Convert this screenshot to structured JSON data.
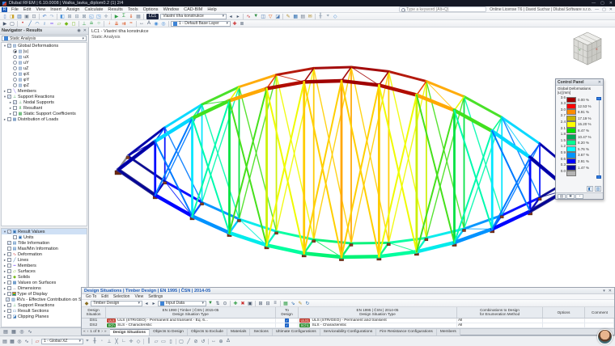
{
  "window": {
    "title": "Dlubal RFEM | 6.10.0008 | Walka_lavka_diplom0.2 (1) 2/4",
    "license": "Online License T6 | David Suchar | Dlubal Software s.r.o.",
    "search_placeholder": "Type a keyword (Alt+Q)",
    "controls": {
      "minimize": "—",
      "maximize": "▢",
      "close": "✕"
    }
  },
  "menubar": {
    "items": [
      "File",
      "Edit",
      "View",
      "Insert",
      "Assign",
      "Calculate",
      "Results",
      "Tools",
      "Options",
      "Window",
      "CAD-BIM",
      "Help"
    ]
  },
  "toolbar1": {
    "load_case_chip": "LC1",
    "load_case_name": "Vlastní tíha konstrukce",
    "left_icons": [
      {
        "n": "new-model-icon",
        "g": "▯",
        "c": "#5b87c5"
      },
      {
        "n": "open-model-icon",
        "g": "◨",
        "c": "#c9a227"
      },
      {
        "n": "save-icon",
        "g": "▥",
        "c": "#3e6fae"
      },
      {
        "n": "print-icon",
        "g": "▣",
        "c": "#6d7b8d"
      },
      {
        "n": "screenshot-icon",
        "g": "⊡",
        "c": "#6d7b8d"
      },
      {
        "sep": true
      },
      {
        "n": "undo-icon",
        "g": "↶",
        "c": "#3c78c8"
      },
      {
        "n": "redo-icon",
        "g": "↷",
        "c": "#9fb6d4"
      },
      {
        "sep": true
      },
      {
        "n": "view-isometric-icon",
        "g": "◧",
        "c": "#4a90d9"
      },
      {
        "n": "view-front-icon",
        "g": "⊞",
        "c": "#7a8ca0"
      },
      {
        "n": "view-top-icon",
        "g": "⊟",
        "c": "#7a8ca0"
      },
      {
        "n": "view-side-icon",
        "g": "⊠",
        "c": "#7a8ca0"
      },
      {
        "n": "zoom-window-icon",
        "g": "◱",
        "c": "#4a90d9"
      },
      {
        "n": "zoom-all-icon",
        "g": "◳",
        "c": "#4a90d9"
      },
      {
        "n": "pan-icon",
        "g": "✛",
        "c": "#7a8ca0"
      },
      {
        "sep": true
      },
      {
        "n": "calculate-icon",
        "g": "▶",
        "c": "#2f9e44"
      },
      {
        "n": "calculate-all-icon",
        "g": "Σ",
        "c": "#2f9e44"
      },
      {
        "n": "load-cases-icon",
        "g": "⇓",
        "c": "#d9480f"
      },
      {
        "n": "mesh-icon",
        "g": "▦",
        "c": "#7a8ca0"
      },
      {
        "sep": true
      }
    ],
    "right_icons": [
      {
        "n": "previous-load-case-icon",
        "g": "◂",
        "c": "#44546a"
      },
      {
        "n": "next-load-case-icon",
        "g": "▸",
        "c": "#44546a"
      },
      {
        "sep": true
      },
      {
        "n": "show-results-icon",
        "g": "∿",
        "c": "#c92a2a"
      },
      {
        "n": "result-values-icon",
        "g": "▼",
        "c": "#2b8a3e"
      },
      {
        "n": "control-panel-toggle-icon",
        "g": "◫",
        "c": "#4a78b0"
      },
      {
        "n": "result-filter-icon",
        "g": "▽",
        "c": "#e8590c"
      },
      {
        "n": "clipping-plane-icon",
        "g": "◪",
        "c": "#4a78b0"
      },
      {
        "sep": true
      },
      {
        "n": "edit-icon",
        "g": "✎",
        "c": "#b08d2f"
      },
      {
        "n": "tables-icon",
        "g": "▦",
        "c": "#2b6cb0"
      },
      {
        "n": "printout-report-icon",
        "g": "▤",
        "c": "#6d7b8d"
      },
      {
        "n": "add-comment-icon",
        "g": "✉",
        "c": "#b08d2f"
      },
      {
        "sep": true
      },
      {
        "n": "grid-icon",
        "g": "╫",
        "c": "#7a8ca0"
      },
      {
        "n": "object-snap-icon",
        "g": "⌖",
        "c": "#7a8ca0"
      },
      {
        "n": "work-plane-icon",
        "g": "◇",
        "c": "#4a90d9"
      }
    ]
  },
  "toolbar2": {
    "layer_combo": "1 - Default Base Layer",
    "icons": [
      {
        "n": "select-icon",
        "g": "▶",
        "c": "#44546a"
      },
      {
        "n": "select-special-icon",
        "g": "▢",
        "c": "#44546a"
      },
      {
        "sep": true
      },
      {
        "n": "node-icon",
        "g": "•",
        "c": "#c92a2a"
      },
      {
        "n": "line-icon",
        "g": "╱",
        "c": "#2b6cb0"
      },
      {
        "n": "arc-icon",
        "g": "◠",
        "c": "#2b6cb0"
      },
      {
        "n": "polyline-icon",
        "g": "≀",
        "c": "#2b6cb0"
      },
      {
        "n": "member-icon",
        "g": "━",
        "c": "#845ef7"
      },
      {
        "n": "surface-icon",
        "g": "▱",
        "c": "#74b816"
      },
      {
        "n": "solid-icon",
        "g": "◆",
        "c": "#74b816"
      },
      {
        "n": "opening-icon",
        "g": "◻",
        "c": "#74b816"
      },
      {
        "sep": true
      },
      {
        "n": "nodal-support-icon",
        "g": "⊥",
        "c": "#2f9e44"
      },
      {
        "n": "line-support-icon",
        "g": "≞",
        "c": "#2f9e44"
      },
      {
        "n": "member-hinge-icon",
        "g": "○",
        "c": "#2f9e44"
      },
      {
        "sep": true
      },
      {
        "n": "nodal-load-icon",
        "g": "↓",
        "c": "#d9480f"
      },
      {
        "n": "member-load-icon",
        "g": "⇊",
        "c": "#d9480f"
      },
      {
        "n": "surface-load-icon",
        "g": "⇉",
        "c": "#d9480f"
      },
      {
        "n": "imperfection-icon",
        "g": "≈",
        "c": "#d9480f"
      },
      {
        "sep": true
      },
      {
        "n": "dimension-icon",
        "g": "↔",
        "c": "#44546a"
      },
      {
        "n": "text-comment-icon",
        "g": "A",
        "c": "#44546a"
      },
      {
        "n": "visibility-icon",
        "g": "◉",
        "c": "#4a90d9"
      },
      {
        "n": "user-view-icon",
        "g": "◎",
        "c": "#4a90d9"
      },
      {
        "sep": true
      }
    ],
    "tail_icons": [
      {
        "n": "layer-settings-icon",
        "g": "✚",
        "c": "#c92a2a"
      },
      {
        "n": "layer-manager-icon",
        "g": "≣",
        "c": "#44546a"
      }
    ]
  },
  "viewport": {
    "label_line1": "LC1 - Vlastní tíha konstrukce",
    "label_line2": "Static Analysis"
  },
  "results_navigator": {
    "title": "Navigator - Results",
    "analysis_combo": "Static Analysis",
    "tree": [
      {
        "d": 0,
        "e": "v",
        "c": true,
        "ig": "▧",
        "icc": "#4a78b0",
        "label": "Global Deformations"
      },
      {
        "d": 1,
        "r": true,
        "ig": "▧",
        "icc": "#4a78b0",
        "label": "|u|"
      },
      {
        "d": 1,
        "r": false,
        "ig": "▧",
        "icc": "#4a78b0",
        "label": "uX"
      },
      {
        "d": 1,
        "r": false,
        "ig": "▧",
        "icc": "#4a78b0",
        "label": "uY"
      },
      {
        "d": 1,
        "r": false,
        "ig": "▧",
        "icc": "#4a78b0",
        "label": "uZ"
      },
      {
        "d": 1,
        "r": false,
        "ig": "▧",
        "icc": "#4a78b0",
        "label": "φX"
      },
      {
        "d": 1,
        "r": false,
        "ig": "▧",
        "icc": "#4a78b0",
        "label": "φY"
      },
      {
        "d": 1,
        "r": false,
        "ig": "▧",
        "icc": "#4a78b0",
        "label": "φZ"
      },
      {
        "d": 0,
        "e": ">",
        "c": false,
        "ig": "╲",
        "icc": "#845ef7",
        "label": "Members"
      },
      {
        "d": 0,
        "e": "v",
        "c": true,
        "ig": "⊥",
        "icc": "#2f9e44",
        "label": "Support Reactions"
      },
      {
        "d": 1,
        "e": ">",
        "c": true,
        "ig": "⊥",
        "icc": "#2f9e44",
        "label": "Nodal Supports"
      },
      {
        "d": 1,
        "e": ">",
        "c": false,
        "ig": "⊻",
        "icc": "#2f9e44",
        "label": "Resultant"
      },
      {
        "d": 1,
        "e": ">",
        "c": false,
        "ig": "▦",
        "icc": "#2f9e44",
        "label": "Static Support Coefficients"
      },
      {
        "d": 0,
        "e": ">",
        "c": false,
        "ig": "▦",
        "icc": "#4a78b0",
        "label": "Distribution of Loads"
      }
    ]
  },
  "display_navigator": {
    "tree": [
      {
        "d": 0,
        "e": "v",
        "c": true,
        "sel": true,
        "ig": "▣",
        "icc": "#2b6cb0",
        "label": "Result Values"
      },
      {
        "d": 1,
        "e": "",
        "c": false,
        "ig": "▣",
        "icc": "#2b6cb0",
        "label": "Units"
      },
      {
        "d": 0,
        "e": "",
        "c": true,
        "ig": "▤",
        "icc": "#2b6cb0",
        "label": "Title Information"
      },
      {
        "d": 0,
        "e": "",
        "c": false,
        "ig": "▤",
        "icc": "#2b6cb0",
        "label": "Max/Min Information"
      },
      {
        "d": 0,
        "e": ">",
        "c": false,
        "ig": "∿",
        "icc": "#c92a2a",
        "label": "Deformation"
      },
      {
        "d": 0,
        "e": ">",
        "c": false,
        "ig": "╱",
        "icc": "#2b6cb0",
        "label": "Lines"
      },
      {
        "d": 0,
        "e": ">",
        "c": false,
        "ig": "━",
        "icc": "#845ef7",
        "label": "Members"
      },
      {
        "d": 0,
        "e": ">",
        "c": false,
        "ig": "▱",
        "icc": "#74b816",
        "label": "Surfaces"
      },
      {
        "d": 0,
        "e": ">",
        "c": false,
        "ig": "◆",
        "icc": "#74b816",
        "label": "Solids"
      },
      {
        "d": 0,
        "e": ">",
        "c": false,
        "ig": "▦",
        "icc": "#2b6cb0",
        "label": "Values on Surfaces"
      },
      {
        "d": 0,
        "e": ">",
        "c": false,
        "ig": "↔",
        "icc": "#44546a",
        "label": "Dimensions"
      },
      {
        "d": 0,
        "e": ">",
        "c": false,
        "rainbow": true,
        "label": "Type of Display"
      },
      {
        "d": 0,
        "e": "",
        "c": true,
        "ig": "▧",
        "icc": "#2b6cb0",
        "label": "RVs - Effective Contribution on Surface/Member"
      },
      {
        "d": 0,
        "e": ">",
        "c": false,
        "ig": "⊥",
        "icc": "#2f9e44",
        "label": "Support Reactions"
      },
      {
        "d": 0,
        "e": ">",
        "c": false,
        "ig": "▭",
        "icc": "#2b6cb0",
        "label": "Result Sections"
      },
      {
        "d": 0,
        "e": ">",
        "c": false,
        "ig": "◪",
        "icc": "#2b6cb0",
        "label": "Clipping Planes"
      }
    ],
    "bottom_tabs": [
      {
        "n": "data-navigator-tab",
        "g": "▤"
      },
      {
        "n": "display-navigator-tab",
        "g": "▦"
      },
      {
        "n": "views-navigator-tab",
        "g": "◎"
      },
      {
        "n": "results-navigator-tab",
        "g": "∿"
      }
    ]
  },
  "control_panel": {
    "title": "Control Panel",
    "result_type": "Global Deformations",
    "unit": "|u| [mm]",
    "ticks": [
      "3.6",
      "3.3",
      "3.0",
      "2.7",
      "2.4",
      "2.1",
      "1.8",
      "1.5",
      "1.2",
      "0.9",
      "0.6",
      "0.3",
      "0.0"
    ],
    "bands": [
      {
        "color": "#a00000",
        "pct": "0.00 %"
      },
      {
        "color": "#ff0000",
        "pct": "12.53 %"
      },
      {
        "color": "#ff8c00",
        "pct": "8.91 %"
      },
      {
        "color": "#c8b400",
        "pct": "17.19 %"
      },
      {
        "color": "#ffff00",
        "pct": "15.20 %"
      },
      {
        "color": "#00e000",
        "pct": "8.47 %"
      },
      {
        "color": "#00aa55",
        "pct": "10.47 %"
      },
      {
        "color": "#00ff95",
        "pct": "8.20 %"
      },
      {
        "color": "#00ffff",
        "pct": "5.76 %"
      },
      {
        "color": "#0095ff",
        "pct": "3.67 %"
      },
      {
        "color": "#0000ff",
        "pct": "2.91 %"
      },
      {
        "color": "#0000a0",
        "pct": "1.47 %"
      }
    ],
    "gray_band_color": "#b4b4b4",
    "panel_buttons": [
      {
        "n": "panel-options-button",
        "g": "◧"
      },
      {
        "n": "panel-display-button",
        "g": "▥"
      }
    ],
    "panel_tabs": [
      {
        "n": "color-scale-tab",
        "g": "▤"
      },
      {
        "n": "factors-tab",
        "g": "✱"
      },
      {
        "n": "filter-tab",
        "g": "◔"
      }
    ]
  },
  "design_panel": {
    "title": "Design Situations | Timber Design | EN 1995 | ČSN | 2014-05",
    "menus": [
      "Go To",
      "Edit",
      "Selection",
      "View",
      "Settings"
    ],
    "module_combo": "Timber Design",
    "table_combo": "Input Data",
    "toolbar_icons": [
      {
        "n": "relation-filter-icon",
        "g": "▼",
        "c": "#2b8a3e"
      },
      {
        "n": "sort-icon",
        "g": "⇅",
        "c": "#44546a"
      },
      {
        "n": "search-table-icon",
        "g": "⊙",
        "c": "#44546a"
      },
      {
        "sep": true
      },
      {
        "n": "add-row-icon",
        "g": "✚",
        "c": "#2f9e44"
      },
      {
        "n": "delete-row-icon",
        "g": "✖",
        "c": "#c92a2a"
      },
      {
        "n": "copy-row-icon",
        "g": "▣",
        "c": "#44546a"
      },
      {
        "sep": true
      },
      {
        "n": "expand-table-icon",
        "g": "⊞",
        "c": "#44546a"
      },
      {
        "n": "collapse-table-icon",
        "g": "⊟",
        "c": "#44546a"
      },
      {
        "n": "table-settings-icon",
        "g": "≡",
        "c": "#44546a"
      },
      {
        "sep": true
      },
      {
        "n": "export-excel-icon",
        "g": "▦",
        "c": "#2f9e44"
      },
      {
        "n": "import-icon",
        "g": "⇘",
        "c": "#2b6cb0"
      },
      {
        "n": "notes-icon",
        "g": "✎",
        "c": "#b08d2f"
      },
      {
        "n": "refresh-icon",
        "g": "↻",
        "c": "#2b6cb0"
      }
    ],
    "table": {
      "headers": [
        {
          "l1": "Design",
          "l2": "Situation"
        },
        {
          "l1": "EN 1990 | Timber | ČSN | 2015-05",
          "l2": "Design Situation Type"
        },
        {
          "l1": "To",
          "l2": "Design"
        },
        {
          "l1": "EN 1995 | ČSN | 2014-05",
          "l2": "Design Situation Type"
        },
        {
          "l1": "Combinations to Design",
          "l2": "for Enumeration Method"
        },
        {
          "l1": "Options",
          "l2": ""
        },
        {
          "l1": "Comment",
          "l2": ""
        }
      ],
      "rows": [
        {
          "id": "DS1",
          "b1": "ULS",
          "b1c": "#c0392b",
          "t1": "ULS (STR/GEO) - Permanent and transient - Eq. 6...",
          "chk": true,
          "b2": "ULS1",
          "b2c": "#c0392b",
          "t2": "ULS (STR/GEO) - Permanent and transient",
          "comb": "All"
        },
        {
          "id": "DS2",
          "b1": "SCh",
          "b1c": "#2e8b2e",
          "t1": "SLS - Characteristic",
          "chk": true,
          "b2": "SCh1",
          "b2c": "#2e8b2e",
          "t2": "SLS - Characteristic",
          "comb": "All"
        },
        {
          "id": "DS3",
          "b1": "SQP",
          "b1c": "#2e8b2e",
          "t1": "SLS - Quasi-permanent",
          "chk": true,
          "b2": "SQp1",
          "b2c": "#2e8b2e",
          "t2": "SLS - Quasi-permanent 1",
          "comb": "All"
        }
      ]
    },
    "pager": "1 of 9",
    "tabs": [
      "Design Situations",
      "Objects to Design",
      "Objects to Exclude",
      "Materials",
      "Sections",
      "Ultimate Configurations",
      "Serviceability Configurations",
      "Fire Resistance Configurations",
      "Members"
    ],
    "active_tab": "Design Situations"
  },
  "statusbar": {
    "plane_combo": "1 - Global XZ",
    "icons": [
      {
        "n": "snap-node-icon",
        "g": "⌖"
      },
      {
        "n": "snap-grid-icon",
        "g": "╫"
      },
      {
        "n": "snap-midpoint-icon",
        "g": "◦"
      },
      {
        "n": "snap-perpendicular-icon",
        "g": "⊥"
      },
      {
        "n": "snap-intersection-icon",
        "g": "╳"
      },
      {
        "n": "ortho-mode-icon",
        "g": "∟"
      },
      {
        "n": "cartesian-grid-icon",
        "g": "✛"
      },
      {
        "n": "polar-grid-icon",
        "g": "◇"
      },
      {
        "sep": true
      },
      {
        "n": "guideline-icon",
        "g": "║"
      },
      {
        "n": "plane-xy-icon",
        "g": "▱"
      },
      {
        "n": "plane-xz-icon",
        "g": "▭"
      },
      {
        "n": "plane-yz-icon",
        "g": "▯"
      },
      {
        "sep": true
      },
      {
        "n": "select-window-icon",
        "g": "▢"
      },
      {
        "n": "select-line-icon",
        "g": "╱"
      },
      {
        "n": "deselect-icon",
        "g": "⊘"
      },
      {
        "n": "undo-selection-icon",
        "g": "↺"
      },
      {
        "sep": true
      },
      {
        "n": "measure-icon",
        "g": "↔"
      },
      {
        "n": "coordinates-icon",
        "g": "⊕"
      },
      {
        "n": "delta-icon",
        "g": "Δ"
      }
    ]
  }
}
